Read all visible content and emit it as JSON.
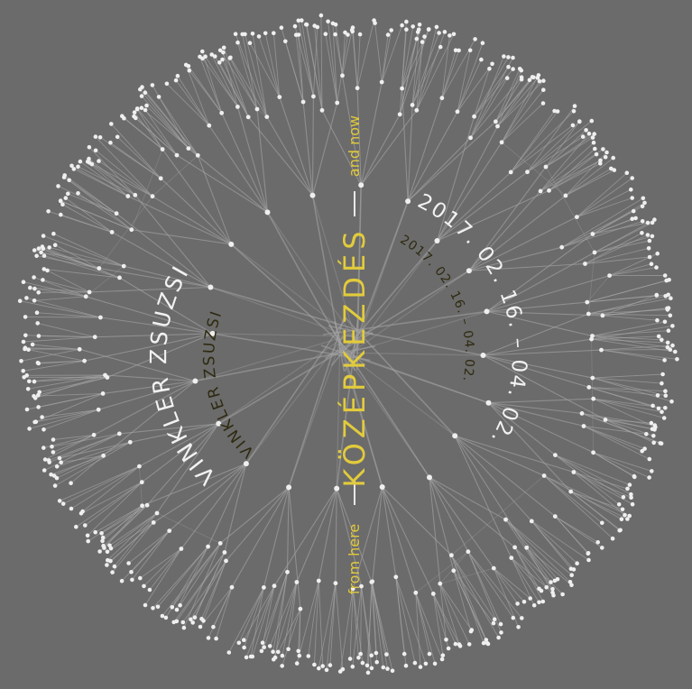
{
  "poster": {
    "title": "KÖZÉPKEZDÉS",
    "from_label": "from here",
    "now_label": "and now",
    "artist_large": "VINKLER ZSUZSI",
    "artist_small": "VINKLER ZSUZSI",
    "dates_large": "2017. 02. 16. – 04. 02.",
    "dates_small": "2017. 02. 16. – 04. 02."
  },
  "colors": {
    "background": "#6b6b6b",
    "lines": "#a6a6a6",
    "nodes": "#efefef",
    "title": "#e2cb3c",
    "artist_small": "#2e2a10",
    "white_text": "#f2f2f2"
  }
}
